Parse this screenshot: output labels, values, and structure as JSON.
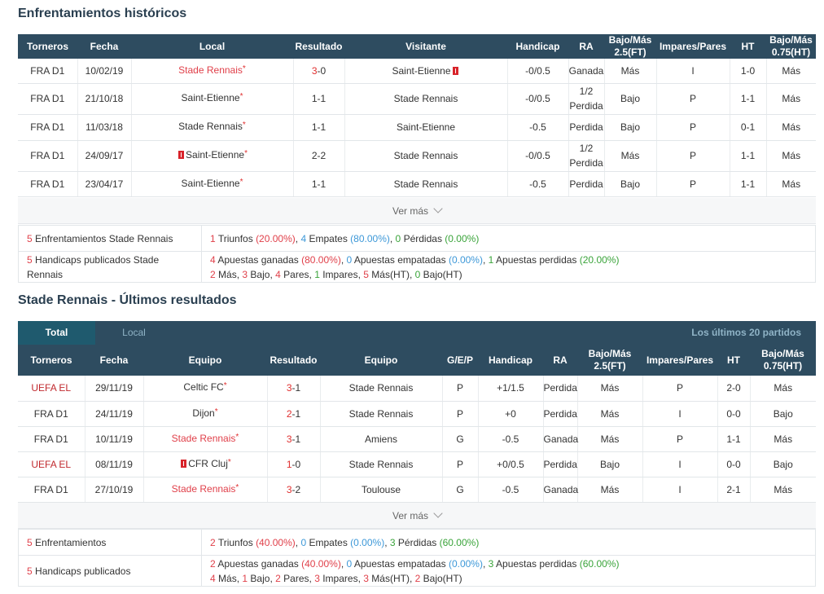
{
  "h2h": {
    "title": "Enfrentamientos históricos",
    "headers": [
      "Torneros",
      "Fecha",
      "Local",
      "Resultado",
      "Visitante",
      "Handicap",
      "RA",
      "Bajo/Más 2.5(FT)",
      "Impares/Pares",
      "HT",
      "Bajo/Más 0.75(HT)"
    ],
    "rows": [
      {
        "torneo": "FRA D1",
        "fecha": "10/02/19",
        "local": "Stade Rennais",
        "res_l": "3",
        "res_r": "-0",
        "visit": "Saint-Etienne",
        "hcp": "-0/0.5",
        "ra": "Ganada",
        "ou": "Más",
        "oe": "I",
        "ht": "1-0",
        "ou_ht": "Más"
      },
      {
        "torneo": "FRA D1",
        "fecha": "21/10/18",
        "local": "Saint-Etienne",
        "res": "1-1",
        "visit": "Stade Rennais",
        "hcp": "-0/0.5",
        "ra1": "1/2",
        "ra2": "Perdida",
        "ou": "Bajo",
        "oe": "P",
        "ht": "1-1",
        "ou_ht": "Más"
      },
      {
        "torneo": "FRA D1",
        "fecha": "11/03/18",
        "local": "Stade Rennais",
        "res": "1-1",
        "visit": "Saint-Etienne",
        "hcp": "-0.5",
        "ra": "Perdida",
        "ou": "Bajo",
        "oe": "P",
        "ht": "0-1",
        "ou_ht": "Más"
      },
      {
        "torneo": "FRA D1",
        "fecha": "24/09/17",
        "local": "Saint-Etienne",
        "res": "2-2",
        "visit": "Stade Rennais",
        "hcp": "-0/0.5",
        "ra1": "1/2",
        "ra2": "Perdida",
        "ou": "Más",
        "oe": "P",
        "ht": "1-1",
        "ou_ht": "Más"
      },
      {
        "torneo": "FRA D1",
        "fecha": "23/04/17",
        "local": "Saint-Etienne",
        "res": "1-1",
        "visit": "Stade Rennais",
        "hcp": "-0.5",
        "ra": "Perdida",
        "ou": "Bajo",
        "oe": "P",
        "ht": "1-1",
        "ou_ht": "Más"
      }
    ],
    "more": "Ver más",
    "summary": {
      "l1_n": "5",
      "l1": "Enfrentamientos Stade Rennais",
      "t_n": "1",
      "t_l": "Triunfos",
      "t_p": "(20.00%)",
      "e_n": "4",
      "e_l": "Empates",
      "e_p": "(80.00%)",
      "p_n": "0",
      "p_l": "Pérdidas",
      "p_p": "(0.00%)",
      "l2_n": "5",
      "l2": "Handicaps publicados Stade Rennais",
      "ag_n": "4",
      "ag_l": "Apuestas ganadas",
      "ag_p": "(80.00%)",
      "ae_n": "0",
      "ae_l": "Apuestas empatadas",
      "ae_p": "(0.00%)",
      "ap_n": "1",
      "ap_l": "Apuestas perdidas",
      "ap_p": "(20.00%)",
      "m_n": "2",
      "m_l": "Más,",
      "b_n": "3",
      "b_l": "Bajo,",
      "pa_n": "4",
      "pa_l": "Pares,",
      "im_n": "1",
      "im_l": "Impares,",
      "mht_n": "5",
      "mht_l": "Más(HT),",
      "bht_n": "0",
      "bht_l": "Bajo(HT)"
    }
  },
  "recent": {
    "title": "Stade Rennais - Últimos resultados",
    "tabs": {
      "total": "Total",
      "local": "Local",
      "right": "Los últimos 20 partidos"
    },
    "headers": [
      "Torneros",
      "Fecha",
      "Equipo",
      "Resultado",
      "Equipo",
      "G/E/P",
      "Handicap",
      "RA",
      "Bajo/Más 2.5(FT)",
      "Impares/Pares",
      "HT",
      "Bajo/Más 0.75(HT)"
    ],
    "rows": [
      {
        "torneo": "UEFA EL",
        "fecha": "29/11/19",
        "eq1": "Celtic FC",
        "res_l": "3",
        "res_r": "-1",
        "eq2": "Stade Rennais",
        "gep": "P",
        "hcp": "+1/1.5",
        "ra": "Perdida",
        "ou": "Más",
        "oe": "P",
        "ht": "2-0",
        "ou_ht": "Más"
      },
      {
        "torneo": "FRA D1",
        "fecha": "24/11/19",
        "eq1": "Dijon",
        "res_l": "2",
        "res_r": "-1",
        "eq2": "Stade Rennais",
        "gep": "P",
        "hcp": "+0",
        "ra": "Perdida",
        "ou": "Más",
        "oe": "I",
        "ht": "0-0",
        "ou_ht": "Bajo"
      },
      {
        "torneo": "FRA D1",
        "fecha": "10/11/19",
        "eq1": "Stade Rennais",
        "res_l": "3",
        "res_r": "-1",
        "eq2": "Amiens",
        "gep": "G",
        "hcp": "-0.5",
        "ra": "Ganada",
        "ou": "Más",
        "oe": "P",
        "ht": "1-1",
        "ou_ht": "Más"
      },
      {
        "torneo": "UEFA EL",
        "fecha": "08/11/19",
        "eq1": "CFR Cluj",
        "res_l": "1",
        "res_r": "-0",
        "eq2": "Stade Rennais",
        "gep": "P",
        "hcp": "+0/0.5",
        "ra": "Perdida",
        "ou": "Bajo",
        "oe": "I",
        "ht": "0-0",
        "ou_ht": "Bajo"
      },
      {
        "torneo": "FRA D1",
        "fecha": "27/10/19",
        "eq1": "Stade Rennais",
        "res_l": "3",
        "res_r": "-2",
        "eq2": "Toulouse",
        "gep": "G",
        "hcp": "-0.5",
        "ra": "Ganada",
        "ou": "Más",
        "oe": "I",
        "ht": "2-1",
        "ou_ht": "Más"
      }
    ],
    "more": "Ver más",
    "summary": {
      "l1_n": "5",
      "l1": "Enfrentamientos",
      "t_n": "2",
      "t_l": "Triunfos",
      "t_p": "(40.00%)",
      "e_n": "0",
      "e_l": "Empates",
      "e_p": "(0.00%)",
      "p_n": "3",
      "p_l": "Pérdidas",
      "p_p": "(60.00%)",
      "l2_n": "5",
      "l2": "Handicaps publicados",
      "ag_n": "2",
      "ag_l": "Apuestas ganadas",
      "ag_p": "(40.00%)",
      "ae_n": "0",
      "ae_l": "Apuestas empatadas",
      "ae_p": "(0.00%)",
      "ap_n": "3",
      "ap_l": "Apuestas perdidas",
      "ap_p": "(60.00%)",
      "m_n": "4",
      "m_l": "Más,",
      "b_n": "1",
      "b_l": "Bajo,",
      "pa_n": "2",
      "pa_l": "Pares,",
      "im_n": "3",
      "im_l": "Impares,",
      "mht_n": "3",
      "mht_l": "Más(HT),",
      "bht_n": "2",
      "bht_l": "Bajo(HT)"
    }
  },
  "colors": {
    "header_bg": "#2e4c60",
    "win": "#e03030",
    "loss": "#3aa43a",
    "draw": "#3d98d8",
    "link": "#2468b8"
  }
}
